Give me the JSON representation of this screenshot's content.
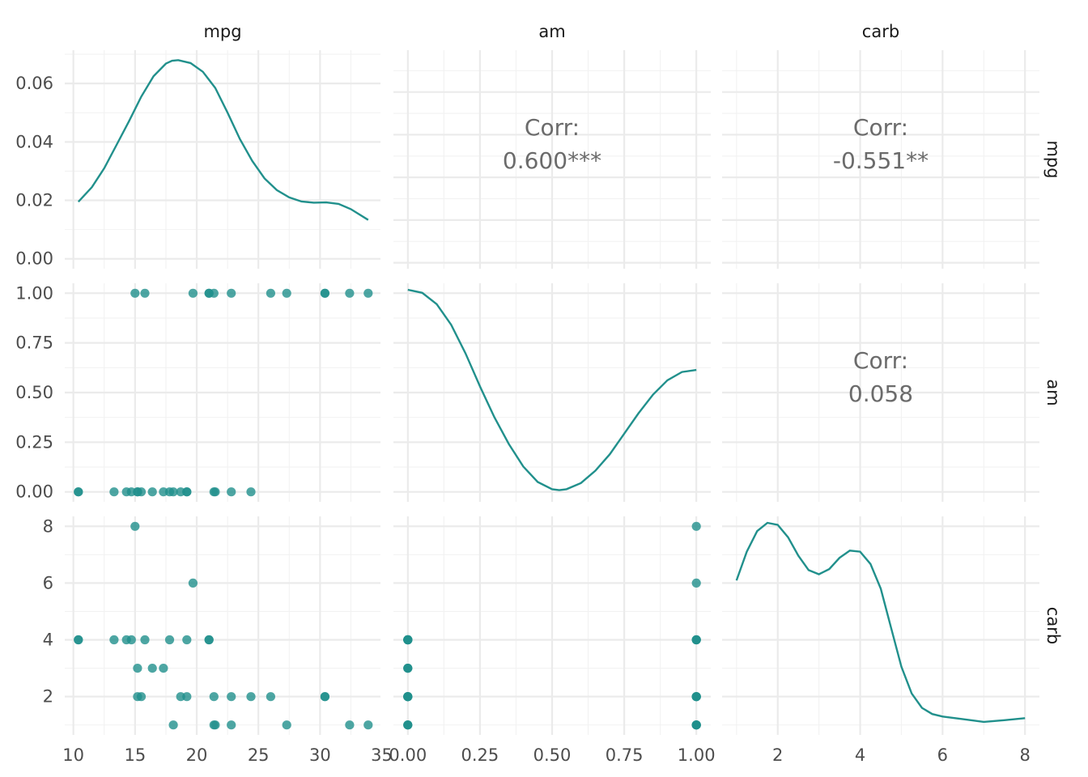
{
  "chart_data": {
    "type": "scatter",
    "subtype": "pairs-matrix",
    "variables": [
      "mpg",
      "am",
      "carb"
    ],
    "color": "#21908c",
    "grid": true,
    "axes": {
      "mpg": {
        "lim": [
          9.3,
          34.9
        ],
        "ticks": [
          10,
          15,
          20,
          25,
          30,
          35
        ],
        "tick_labels": [
          "10",
          "15",
          "20",
          "25",
          "30",
          "35"
        ]
      },
      "am": {
        "lim": [
          -0.05,
          1.05
        ],
        "ticks": [
          0,
          0.25,
          0.5,
          0.75,
          1
        ],
        "tick_labels": [
          "0.00",
          "0.25",
          "0.50",
          "0.75",
          "1.00"
        ]
      },
      "carb": {
        "lim": [
          0.65,
          8.35
        ],
        "ticks": [
          2,
          4,
          6,
          8
        ],
        "tick_labels": [
          "2",
          "4",
          "6",
          "8"
        ]
      },
      "density_mpg_y": {
        "lim": [
          -0.0034,
          0.0714
        ],
        "ticks": [
          0,
          0.02,
          0.04,
          0.06
        ],
        "tick_labels": [
          "0.00",
          "0.02",
          "0.04",
          "0.06"
        ]
      }
    },
    "correlations": [
      {
        "row": "mpg",
        "col": "am",
        "label": "Corr:",
        "value": "0.600***"
      },
      {
        "row": "mpg",
        "col": "carb",
        "label": "Corr:",
        "value": "-0.551**"
      },
      {
        "row": "am",
        "col": "carb",
        "label": "Corr:",
        "value": "0.058"
      }
    ],
    "densities": {
      "mpg": [
        [
          10.4,
          0.0195
        ],
        [
          11.5,
          0.0245
        ],
        [
          12.5,
          0.031
        ],
        [
          13.5,
          0.039
        ],
        [
          14.5,
          0.047
        ],
        [
          15.5,
          0.0555
        ],
        [
          16.5,
          0.0625
        ],
        [
          17.5,
          0.0668
        ],
        [
          18,
          0.0678
        ],
        [
          18.5,
          0.068
        ],
        [
          19.5,
          0.067
        ],
        [
          20.5,
          0.064
        ],
        [
          21.5,
          0.0585
        ],
        [
          22.5,
          0.05
        ],
        [
          23.5,
          0.041
        ],
        [
          24.5,
          0.0335
        ],
        [
          25.5,
          0.0275
        ],
        [
          26.5,
          0.0235
        ],
        [
          27.5,
          0.021
        ],
        [
          28.5,
          0.0196
        ],
        [
          29.5,
          0.0192
        ],
        [
          30.5,
          0.0193
        ],
        [
          31.5,
          0.0188
        ],
        [
          32.5,
          0.017
        ],
        [
          33.9,
          0.0133
        ]
      ],
      "am": [
        [
          0,
          1
        ],
        [
          0.05,
          0.985
        ],
        [
          0.1,
          0.93
        ],
        [
          0.15,
          0.83
        ],
        [
          0.2,
          0.69
        ],
        [
          0.25,
          0.53
        ],
        [
          0.3,
          0.38
        ],
        [
          0.35,
          0.25
        ],
        [
          0.4,
          0.14
        ],
        [
          0.45,
          0.065
        ],
        [
          0.5,
          0.03
        ],
        [
          0.525,
          0.025
        ],
        [
          0.55,
          0.03
        ],
        [
          0.6,
          0.06
        ],
        [
          0.65,
          0.12
        ],
        [
          0.7,
          0.2
        ],
        [
          0.75,
          0.3
        ],
        [
          0.8,
          0.4
        ],
        [
          0.85,
          0.49
        ],
        [
          0.9,
          0.56
        ],
        [
          0.95,
          0.6
        ],
        [
          1,
          0.61
        ]
      ],
      "carb": [
        [
          1,
          0.72
        ],
        [
          1.25,
          0.86
        ],
        [
          1.5,
          0.96
        ],
        [
          1.75,
          1
        ],
        [
          2,
          0.99
        ],
        [
          2.25,
          0.93
        ],
        [
          2.5,
          0.84
        ],
        [
          2.75,
          0.77
        ],
        [
          3,
          0.75
        ],
        [
          3.25,
          0.775
        ],
        [
          3.5,
          0.83
        ],
        [
          3.75,
          0.865
        ],
        [
          4,
          0.86
        ],
        [
          4.25,
          0.8
        ],
        [
          4.5,
          0.68
        ],
        [
          4.75,
          0.49
        ],
        [
          5,
          0.3
        ],
        [
          5.25,
          0.17
        ],
        [
          5.5,
          0.1
        ],
        [
          5.75,
          0.07
        ],
        [
          6,
          0.058
        ],
        [
          6.5,
          0.045
        ],
        [
          7,
          0.032
        ],
        [
          7.5,
          0.04
        ],
        [
          8,
          0.05
        ]
      ]
    },
    "data": {
      "mpg": [
        21,
        21,
        22.8,
        21.4,
        18.7,
        18.1,
        14.3,
        24.4,
        22.8,
        19.2,
        17.8,
        16.4,
        17.3,
        15.2,
        10.4,
        10.4,
        14.7,
        32.4,
        30.4,
        33.9,
        21.5,
        15.5,
        15.2,
        13.3,
        19.2,
        27.3,
        26,
        30.4,
        15.8,
        19.7,
        15,
        21.4
      ],
      "am": [
        1,
        1,
        1,
        0,
        0,
        0,
        0,
        0,
        0,
        0,
        0,
        0,
        0,
        0,
        0,
        0,
        0,
        1,
        1,
        1,
        0,
        0,
        0,
        0,
        0,
        1,
        1,
        1,
        1,
        1,
        1,
        1
      ],
      "carb": [
        4,
        4,
        1,
        1,
        2,
        1,
        4,
        2,
        2,
        4,
        4,
        3,
        3,
        3,
        4,
        4,
        4,
        1,
        2,
        1,
        1,
        2,
        2,
        4,
        2,
        1,
        2,
        2,
        4,
        6,
        8,
        2
      ]
    }
  }
}
